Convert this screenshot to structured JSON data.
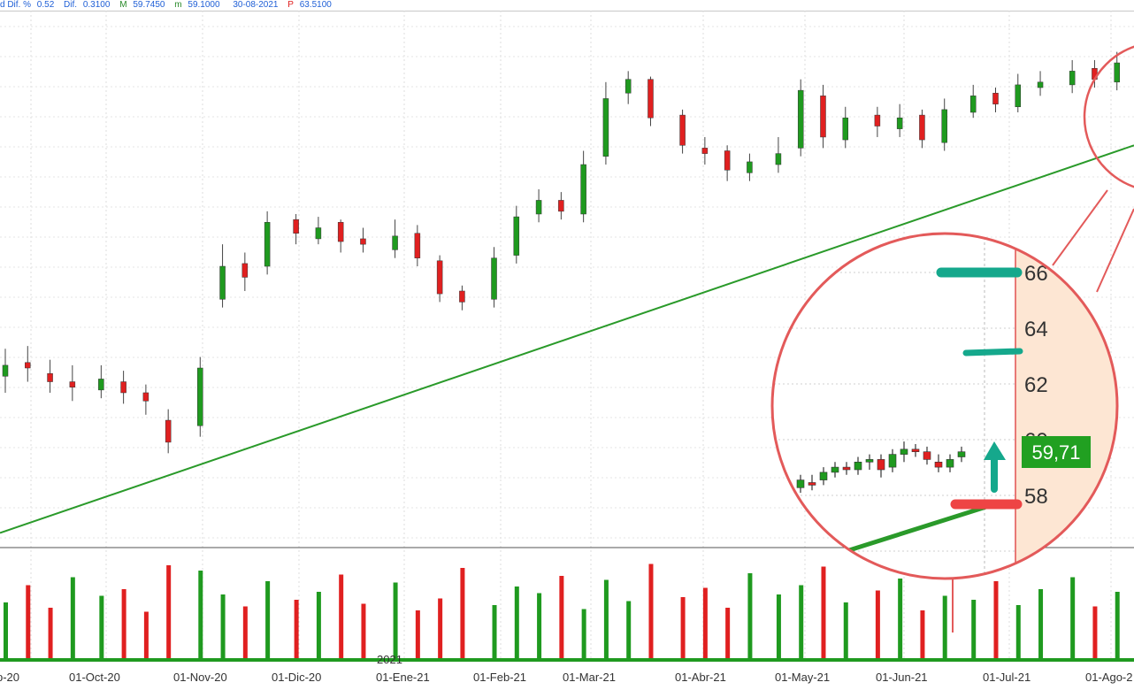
{
  "info_bar": {
    "items": [
      {
        "label": "d Dif. %",
        "value": "0.52"
      },
      {
        "label": "Dif.",
        "value": "0.3100"
      },
      {
        "label": "M",
        "value": "59.7450"
      },
      {
        "label": "m",
        "value": "59.1000"
      },
      {
        "label": "",
        "value": "30-08-2021"
      },
      {
        "label": "P",
        "value": "63.5100"
      }
    ]
  },
  "colors": {
    "up": "#1f9a1f",
    "down": "#e02020",
    "trendline": "#2a9a2a",
    "circle": "#e35a5a",
    "teal_marker": "#15a88c",
    "red_marker": "#ee4444",
    "price_tag": "#21a021",
    "axis_panel": "#fde6d3"
  },
  "chart_data": {
    "type": "candlestick",
    "title": "",
    "x_labels": [
      "p-20",
      "01-Oct-20",
      "01-Nov-20",
      "01-Dic-20",
      "01-Ene-21",
      "01-Feb-21",
      "01-Mar-21",
      "01-Abr-21",
      "01-May-21",
      "01-Jun-21",
      "01-Jul-21",
      "01-Ago-2"
    ],
    "year_marker": "2021",
    "grid": true,
    "ohlc_series": {
      "dates": [
        "2020-09-01",
        "2020-09-08",
        "2020-09-15",
        "2020-09-22",
        "2020-10-01",
        "2020-10-08",
        "2020-10-15",
        "2020-10-22",
        "2020-11-01",
        "2020-11-08",
        "2020-11-15",
        "2020-11-22",
        "2020-12-01",
        "2020-12-08",
        "2020-12-15",
        "2020-12-22",
        "2021-01-01",
        "2021-01-08",
        "2021-01-15",
        "2021-01-22",
        "2021-02-01",
        "2021-02-08",
        "2021-02-15",
        "2021-02-22",
        "2021-03-01",
        "2021-03-08",
        "2021-03-15",
        "2021-03-22",
        "2021-04-01",
        "2021-04-08",
        "2021-04-15",
        "2021-04-22",
        "2021-05-01",
        "2021-05-08",
        "2021-05-15",
        "2021-05-22",
        "2021-06-01",
        "2021-06-08",
        "2021-06-15",
        "2021-06-22",
        "2021-07-01",
        "2021-07-08",
        "2021-07-15",
        "2021-07-22",
        "2021-08-01",
        "2021-08-08",
        "2021-08-15",
        "2021-08-22"
      ],
      "close": [
        50.6,
        50.5,
        50.0,
        49.8,
        50.1,
        49.6,
        49.3,
        47.8,
        50.5,
        54.2,
        53.8,
        55.8,
        55.4,
        55.6,
        55.1,
        55.0,
        55.3,
        54.5,
        53.2,
        52.9,
        54.5,
        56.0,
        56.6,
        56.2,
        57.9,
        60.3,
        61.0,
        59.6,
        58.6,
        58.3,
        57.7,
        58.0,
        58.3,
        60.6,
        58.9,
        59.6,
        59.3,
        59.6,
        58.8,
        59.9,
        60.4,
        60.1,
        60.8,
        60.9,
        61.3,
        61.0,
        61.6,
        61.9
      ],
      "open": [
        50.2,
        50.7,
        50.3,
        50.0,
        49.7,
        50.0,
        49.6,
        48.6,
        48.4,
        53.0,
        54.3,
        54.2,
        55.9,
        55.2,
        55.8,
        55.2,
        54.8,
        55.4,
        54.4,
        53.3,
        53.0,
        54.6,
        56.1,
        56.6,
        56.1,
        58.2,
        60.5,
        61.0,
        59.7,
        58.5,
        58.4,
        57.6,
        57.9,
        58.5,
        60.4,
        58.8,
        59.7,
        59.2,
        59.7,
        58.7,
        59.8,
        60.5,
        60.0,
        60.7,
        60.8,
        61.4,
        60.9,
        61.6
      ],
      "high": [
        51.2,
        51.3,
        50.8,
        50.6,
        50.6,
        50.4,
        49.9,
        49.0,
        50.9,
        55.0,
        54.7,
        56.2,
        56.1,
        56.0,
        55.9,
        55.6,
        55.9,
        55.7,
        54.6,
        53.5,
        54.9,
        56.4,
        57.0,
        56.9,
        58.4,
        60.9,
        61.3,
        61.1,
        59.9,
        58.9,
        58.6,
        58.3,
        58.9,
        61.0,
        60.8,
        60.0,
        60.0,
        60.1,
        59.9,
        60.3,
        60.8,
        60.7,
        61.2,
        61.3,
        61.7,
        61.7,
        62.0,
        62.2
      ],
      "low": [
        49.6,
        50.0,
        49.6,
        49.3,
        49.4,
        49.2,
        48.8,
        47.4,
        48.0,
        52.7,
        53.3,
        53.9,
        55.0,
        55.0,
        54.7,
        54.7,
        54.5,
        54.2,
        52.9,
        52.6,
        52.7,
        54.3,
        55.8,
        55.9,
        55.8,
        57.9,
        60.1,
        59.3,
        58.3,
        57.9,
        57.3,
        57.3,
        57.6,
        58.2,
        58.5,
        58.5,
        58.9,
        58.9,
        58.5,
        58.4,
        59.6,
        59.8,
        59.8,
        60.4,
        60.5,
        60.7,
        60.6,
        61.3
      ]
    },
    "volume_series": {
      "values": [
        42,
        55,
        38,
        61,
        47,
        52,
        35,
        70,
        66,
        48,
        39,
        58,
        44,
        50,
        63,
        41,
        57,
        36,
        45,
        68,
        40,
        54,
        49,
        62,
        37,
        59,
        43,
        71,
        46,
        53,
        38,
        64,
        48,
        55,
        69,
        42,
        51,
        60,
        36,
        47,
        44,
        58,
        40,
        52,
        61,
        39,
        50,
        45
      ],
      "direction": [
        1,
        0,
        0,
        1,
        1,
        0,
        0,
        0,
        1,
        1,
        0,
        1,
        0,
        1,
        0,
        0,
        1,
        0,
        0,
        0,
        1,
        1,
        1,
        0,
        1,
        1,
        1,
        0,
        0,
        0,
        0,
        1,
        1,
        1,
        0,
        1,
        0,
        1,
        0,
        1,
        1,
        0,
        1,
        1,
        1,
        0,
        1,
        1
      ]
    },
    "trendline": {
      "start": {
        "date": "2020-09-01",
        "value": 44.5
      },
      "end": {
        "date": "2021-08-22",
        "value": 58.6
      }
    },
    "zoom_inset": {
      "y_ticks": [
        66,
        64,
        62,
        58
      ],
      "partial_tick": "60",
      "current_price_label": "59,71",
      "resistance_levels": [
        66,
        63
      ],
      "support_level": 58,
      "last_candles": {
        "open": [
          58.3,
          58.5,
          58.6,
          58.9,
          59.1,
          59.0,
          59.3,
          59.4,
          59.1,
          59.6,
          59.8,
          59.7,
          59.3,
          59.1,
          59.5
        ],
        "close": [
          58.6,
          58.4,
          58.9,
          59.1,
          59.0,
          59.3,
          59.4,
          59.0,
          59.6,
          59.8,
          59.7,
          59.4,
          59.1,
          59.4,
          59.7
        ],
        "high": [
          58.8,
          58.8,
          59.1,
          59.3,
          59.3,
          59.5,
          59.6,
          59.6,
          59.8,
          60.1,
          60.0,
          59.9,
          59.6,
          59.6,
          59.9
        ],
        "low": [
          58.1,
          58.2,
          58.4,
          58.7,
          58.8,
          58.8,
          59.0,
          58.7,
          58.9,
          59.3,
          59.5,
          59.2,
          58.9,
          58.9,
          59.3
        ]
      }
    }
  }
}
